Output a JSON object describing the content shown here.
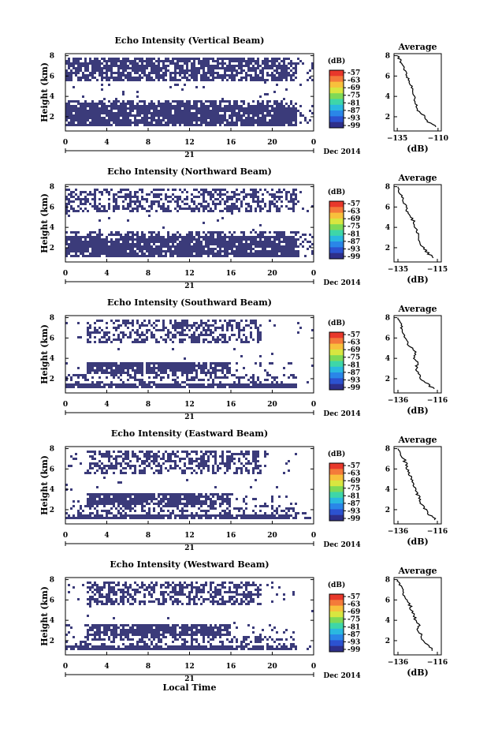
{
  "chart_data": [
    {
      "type": "heatmap",
      "title": "Echo Intensity (Vertical Beam)",
      "ylabel": "Height (km)",
      "xlabel": "",
      "x_ticks": [
        "0",
        "4",
        "8",
        "12",
        "16",
        "20",
        "0"
      ],
      "xlim": [
        0,
        24
      ],
      "y_ticks": [
        "2",
        "4",
        "6",
        "8"
      ],
      "ylim": [
        0.6,
        8.2
      ],
      "date_day": "21",
      "date_label": "Dec 2014",
      "colorbar": {
        "unit": "(dB)",
        "ticks": [
          "-57",
          "-63",
          "-69",
          "-75",
          "-81",
          "-87",
          "-93",
          "-99"
        ]
      },
      "profile": {
        "title": "Average",
        "xlabel": "(dB)",
        "x_ticks": [
          "-135",
          "-110"
        ],
        "xlim": [
          -137,
          -108
        ],
        "y_ticks": [
          "2",
          "4",
          "6",
          "8"
        ],
        "ylim": [
          0.6,
          8.2
        ],
        "heights": [
          1.0,
          1.5,
          2.0,
          2.5,
          3.0,
          3.5,
          4.0,
          4.5,
          5.0,
          5.5,
          6.0,
          6.5,
          7.0,
          7.5,
          8.0
        ],
        "values": [
          -111,
          -116,
          -118,
          -122,
          -123,
          -124,
          -125,
          -126,
          -126,
          -128,
          -129,
          -130,
          -132,
          -133,
          -135
        ]
      },
      "echo_bands_km": [
        [
          1.0,
          3.6
        ],
        [
          5.6,
          8.0
        ]
      ]
    },
    {
      "type": "heatmap",
      "title": "Echo Intensity (Northward Beam)",
      "ylabel": "Height (km)",
      "xlabel": "",
      "x_ticks": [
        "0",
        "4",
        "8",
        "12",
        "16",
        "20",
        "0"
      ],
      "xlim": [
        0,
        24
      ],
      "y_ticks": [
        "2",
        "4",
        "6",
        "8"
      ],
      "ylim": [
        0.6,
        8.2
      ],
      "date_day": "21",
      "date_label": "Dec 2014",
      "colorbar": {
        "unit": "(dB)",
        "ticks": [
          "-57",
          "-63",
          "-69",
          "-75",
          "-81",
          "-87",
          "-93",
          "-99"
        ]
      },
      "profile": {
        "title": "Average",
        "xlabel": "(dB)",
        "x_ticks": [
          "-135",
          "-115"
        ],
        "xlim": [
          -137,
          -113
        ],
        "y_ticks": [
          "2",
          "4",
          "6",
          "8"
        ],
        "ylim": [
          0.6,
          8.2
        ],
        "heights": [
          1.0,
          1.5,
          2.0,
          2.5,
          3.0,
          3.5,
          4.0,
          4.5,
          5.0,
          5.5,
          6.0,
          6.5,
          7.0,
          7.5,
          8.0
        ],
        "values": [
          -117,
          -120,
          -122,
          -124,
          -124,
          -125,
          -126,
          -127,
          -128,
          -130,
          -131,
          -132,
          -133,
          -134,
          -135
        ]
      },
      "echo_bands_km": [
        [
          1.0,
          3.6
        ],
        [
          5.6,
          8.0
        ]
      ]
    },
    {
      "type": "heatmap",
      "title": "Echo Intensity (Southward Beam)",
      "ylabel": "Height (km)",
      "xlabel": "",
      "x_ticks": [
        "0",
        "4",
        "8",
        "12",
        "16",
        "20",
        "0"
      ],
      "xlim": [
        0,
        24
      ],
      "y_ticks": [
        "2",
        "4",
        "6",
        "8"
      ],
      "ylim": [
        0.6,
        8.2
      ],
      "date_day": "21",
      "date_label": "Dec 2014",
      "colorbar": {
        "unit": "(dB)",
        "ticks": [
          "-57",
          "-63",
          "-69",
          "-75",
          "-81",
          "-87",
          "-93",
          "-99"
        ]
      },
      "profile": {
        "title": "Average",
        "xlabel": "(dB)",
        "x_ticks": [
          "-136",
          "-116"
        ],
        "xlim": [
          -138,
          -114
        ],
        "y_ticks": [
          "2",
          "4",
          "6",
          "8"
        ],
        "ylim": [
          0.6,
          8.2
        ],
        "heights": [
          1.0,
          1.5,
          2.0,
          2.5,
          3.0,
          3.5,
          4.0,
          4.5,
          5.0,
          5.5,
          6.0,
          6.5,
          7.0,
          7.5,
          8.0
        ],
        "values": [
          -118,
          -121,
          -124,
          -125,
          -127,
          -126,
          -128,
          -127,
          -129,
          -131,
          -132,
          -133,
          -134,
          -135,
          -136
        ]
      },
      "echo_bands_km": [
        [
          1.0,
          3.6
        ],
        [
          5.6,
          8.0
        ]
      ]
    },
    {
      "type": "heatmap",
      "title": "Echo Intensity (Eastward Beam)",
      "ylabel": "Height (km)",
      "xlabel": "",
      "x_ticks": [
        "0",
        "4",
        "8",
        "12",
        "16",
        "20",
        "0"
      ],
      "xlim": [
        0,
        24
      ],
      "y_ticks": [
        "2",
        "4",
        "6",
        "8"
      ],
      "ylim": [
        0.6,
        8.2
      ],
      "date_day": "21",
      "date_label": "Dec 2014",
      "colorbar": {
        "unit": "(dB)",
        "ticks": [
          "-57",
          "-63",
          "-69",
          "-75",
          "-81",
          "-87",
          "-93",
          "-99"
        ]
      },
      "profile": {
        "title": "Average",
        "xlabel": "(dB)",
        "x_ticks": [
          "-136",
          "-116"
        ],
        "xlim": [
          -138,
          -114
        ],
        "y_ticks": [
          "2",
          "4",
          "6",
          "8"
        ],
        "ylim": [
          0.6,
          8.2
        ],
        "heights": [
          1.0,
          1.5,
          2.0,
          2.5,
          3.0,
          3.5,
          4.0,
          4.5,
          5.0,
          5.5,
          6.0,
          6.5,
          7.0,
          7.5,
          8.0
        ],
        "values": [
          -117,
          -120,
          -122,
          -124,
          -125,
          -126,
          -127,
          -128,
          -129,
          -130,
          -131,
          -132,
          -133,
          -135,
          -136
        ]
      },
      "echo_bands_km": [
        [
          1.0,
          3.6
        ],
        [
          5.6,
          8.0
        ]
      ]
    },
    {
      "type": "heatmap",
      "title": "Echo Intensity (Westward Beam)",
      "ylabel": "Height (km)",
      "xlabel": "Local Time",
      "x_ticks": [
        "0",
        "4",
        "8",
        "12",
        "16",
        "20",
        "0"
      ],
      "xlim": [
        0,
        24
      ],
      "y_ticks": [
        "2",
        "4",
        "6",
        "8"
      ],
      "ylim": [
        0.6,
        8.2
      ],
      "date_day": "21",
      "date_label": "Dec 2014",
      "colorbar": {
        "unit": "(dB)",
        "ticks": [
          "-57",
          "-63",
          "-69",
          "-75",
          "-81",
          "-87",
          "-93",
          "-99"
        ]
      },
      "profile": {
        "title": "Average",
        "xlabel": "(dB)",
        "x_ticks": [
          "-136",
          "-116"
        ],
        "xlim": [
          -138,
          -114
        ],
        "y_ticks": [
          "2",
          "4",
          "6",
          "8"
        ],
        "ylim": [
          0.6,
          8.2
        ],
        "heights": [
          1.0,
          1.5,
          2.0,
          2.5,
          3.0,
          3.5,
          4.0,
          4.5,
          5.0,
          5.5,
          6.0,
          6.5,
          7.0,
          7.5,
          8.0
        ],
        "values": [
          -118,
          -120,
          -123,
          -124,
          -126,
          -125,
          -127,
          -128,
          -129,
          -130,
          -131,
          -133,
          -134,
          -135,
          -136
        ]
      },
      "echo_bands_km": [
        [
          1.0,
          3.6
        ],
        [
          5.6,
          8.0
        ]
      ]
    }
  ],
  "colors": {
    "echo_fill": "#3b3b7a",
    "colorbar_stops": [
      "#e8382b",
      "#f47a3a",
      "#f8c03c",
      "#d8e640",
      "#7ed957",
      "#3ed6a8",
      "#2ab8e0",
      "#2a86e8",
      "#2c52d0",
      "#2e2f8a"
    ]
  }
}
